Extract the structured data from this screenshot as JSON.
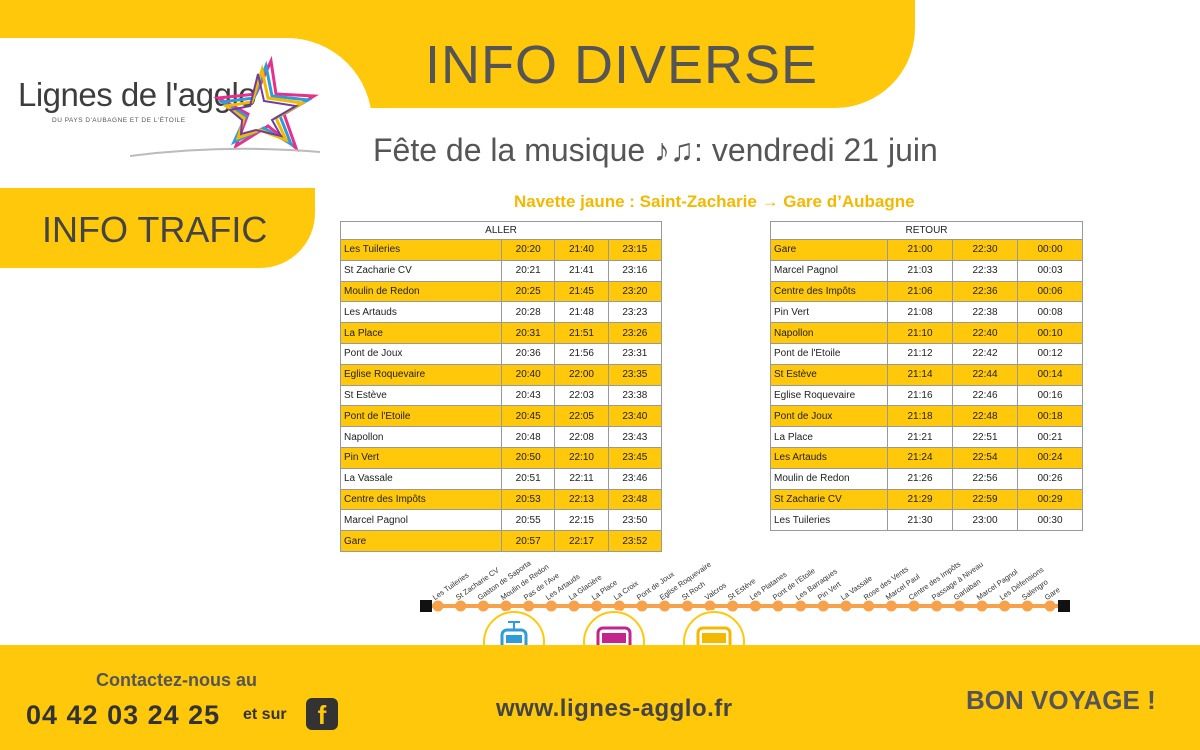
{
  "brand": {
    "name": "Lignes de l'agglo",
    "tagline": "DU PAYS D'AUBAGNE ET DE L'ÉTOILE"
  },
  "header": {
    "title": "INFO DIVERSE",
    "subtitle": "Fête de la musique ♪♫: vendredi 21 juin",
    "shuttle": "Navette  jaune : Saint-Zacharie → Gare d’Aubagne"
  },
  "trafic_label": "INFO TRAFIC",
  "aller": {
    "header": "ALLER",
    "rows": [
      [
        "Les Tuileries",
        "20:20",
        "21:40",
        "23:15"
      ],
      [
        "St Zacharie CV",
        "20:21",
        "21:41",
        "23:16"
      ],
      [
        "Moulin de Redon",
        "20:25",
        "21:45",
        "23:20"
      ],
      [
        "Les Artauds",
        "20:28",
        "21:48",
        "23:23"
      ],
      [
        "La Place",
        "20:31",
        "21:51",
        "23:26"
      ],
      [
        "Pont de Joux",
        "20:36",
        "21:56",
        "23:31"
      ],
      [
        "Eglise Roquevaire",
        "20:40",
        "22:00",
        "23:35"
      ],
      [
        "St Estève",
        "20:43",
        "22:03",
        "23:38"
      ],
      [
        "Pont de l'Etoile",
        "20:45",
        "22:05",
        "23:40"
      ],
      [
        "Napollon",
        "20:48",
        "22:08",
        "23:43"
      ],
      [
        "Pin Vert",
        "20:50",
        "22:10",
        "23:45"
      ],
      [
        "La Vassale",
        "20:51",
        "22:11",
        "23:46"
      ],
      [
        "Centre des Impôts",
        "20:53",
        "22:13",
        "23:48"
      ],
      [
        "Marcel Pagnol",
        "20:55",
        "22:15",
        "23:50"
      ],
      [
        "Gare",
        "20:57",
        "22:17",
        "23:52"
      ]
    ]
  },
  "retour": {
    "header": "RETOUR",
    "rows": [
      [
        "Gare",
        "21:00",
        "22:30",
        "00:00"
      ],
      [
        "Marcel Pagnol",
        "21:03",
        "22:33",
        "00:03"
      ],
      [
        "Centre des Impôts",
        "21:06",
        "22:36",
        "00:06"
      ],
      [
        "Pin Vert",
        "21:08",
        "22:38",
        "00:08"
      ],
      [
        "Napollon",
        "21:10",
        "22:40",
        "00:10"
      ],
      [
        "Pont de l'Etoile",
        "21:12",
        "22:42",
        "00:12"
      ],
      [
        "St Estève",
        "21:14",
        "22:44",
        "00:14"
      ],
      [
        "Eglise Roquevaire",
        "21:16",
        "22:46",
        "00:16"
      ],
      [
        "Pont de Joux",
        "21:18",
        "22:48",
        "00:18"
      ],
      [
        "La Place",
        "21:21",
        "22:51",
        "00:21"
      ],
      [
        "Les Artauds",
        "21:24",
        "22:54",
        "00:24"
      ],
      [
        "Moulin de Redon",
        "21:26",
        "22:56",
        "00:26"
      ],
      [
        "St Zacharie CV",
        "21:29",
        "22:59",
        "00:29"
      ],
      [
        "Les Tuileries",
        "21:30",
        "23:00",
        "00:30"
      ]
    ]
  },
  "route_stops": [
    "Les Tuileries",
    "St Zacharie CV",
    "Gaston de Saporta",
    "Moulin de Redon",
    "Pas de l'Ave",
    "Les Artauds",
    "La Glacière",
    "La Place",
    "La Croix",
    "Pont de Joux",
    "Eglise Roquevaire",
    "St Roch",
    "Valcros",
    "St Estève",
    "Les Platanes",
    "Pont de l'Etoile",
    "Les Barraques",
    "Pin Vert",
    "La Vassale",
    "Rose des Vents",
    "Marcel Paul",
    "Centre des Impôts",
    "Passage à Niveau",
    "Garlaban",
    "Marcel Pagnol",
    "Les Défensions",
    "Salengro",
    "Gare"
  ],
  "modes": [
    {
      "icon": "tram-icon",
      "color": "#2F9BD8"
    },
    {
      "icon": "bus-icon",
      "color": "#C2258E"
    },
    {
      "icon": "bus-icon",
      "color": "#F5B800"
    }
  ],
  "footer": {
    "contact_label": "Contactez-nous au",
    "phone": "04 42 03 24 25",
    "and_on": "et sur",
    "facebook": "f",
    "website": "www.lignes-agglo.fr",
    "goodbye": "BON VOYAGE !"
  },
  "colors": {
    "accent": "#FFC80A",
    "route": "#F7A24B"
  }
}
